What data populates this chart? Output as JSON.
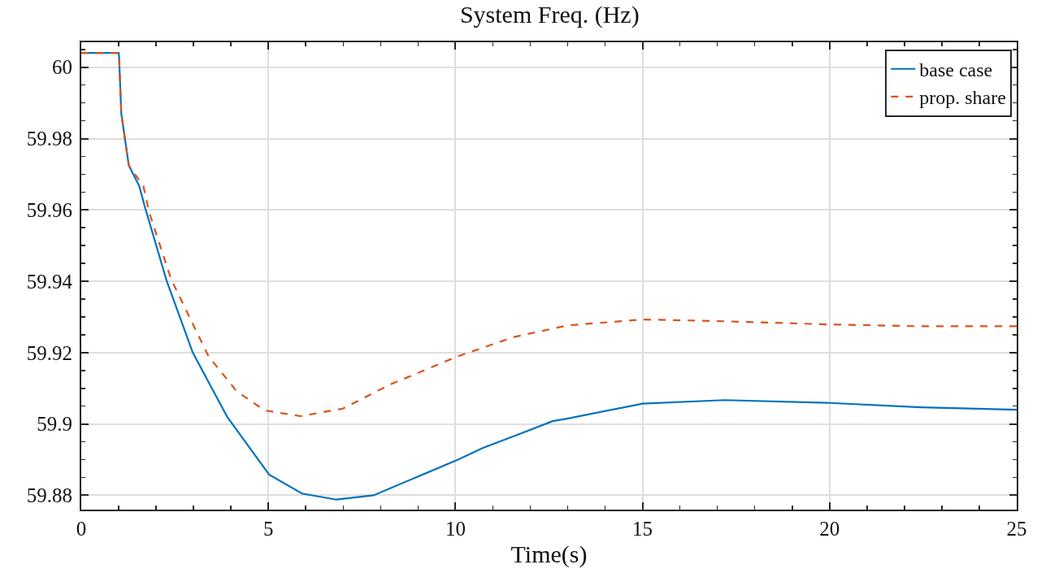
{
  "chart_data": {
    "type": "line",
    "title": "System Freq. (Hz)",
    "xlabel": "Time(s)",
    "xlim": [
      0,
      25
    ],
    "xticks": [
      0,
      5,
      10,
      15,
      20,
      25
    ],
    "ylim": [
      59.876,
      60.007
    ],
    "yticks": [
      59.88,
      59.9,
      59.92,
      59.94,
      59.96,
      59.98,
      60
    ],
    "grid": true,
    "legend": "top right",
    "marker": "none",
    "series": [
      {
        "name": "base case",
        "color": "#0072bd",
        "line_style": "solid",
        "x": [
          0,
          1,
          1.01,
          1.07,
          1.27,
          1.55,
          1.69,
          2.28,
          2.98,
          3.9,
          5.02,
          5.9,
          6.82,
          7.81,
          10.07,
          10.74,
          11.57,
          12.6,
          12.98,
          15,
          17.19,
          20,
          22.44,
          25
        ],
        "values": [
          60.004,
          60.004,
          60.003,
          59.987,
          59.9725,
          59.9667,
          59.9612,
          59.9402,
          59.92,
          59.902,
          59.8858,
          59.8805,
          59.8788,
          59.88,
          59.89,
          59.8933,
          59.8966,
          59.9008,
          59.9015,
          59.9057,
          59.9067,
          59.9059,
          59.9047,
          59.904
        ]
      },
      {
        "name": "prop. share",
        "color": "#d95319",
        "line_style": "dashed",
        "x": [
          0,
          1,
          1.01,
          1.07,
          1.27,
          1.66,
          1.81,
          2.4,
          3.4,
          4.15,
          4.9,
          5.86,
          6.99,
          8.24,
          10.07,
          11.57,
          12.98,
          15,
          17.19,
          20,
          22.44,
          25
        ],
        "values": [
          60.004,
          60.004,
          60.003,
          59.987,
          59.9725,
          59.9667,
          59.9595,
          59.9406,
          59.919,
          59.9092,
          59.9038,
          59.9022,
          59.9043,
          59.911,
          59.919,
          59.9244,
          59.9276,
          59.9293,
          59.9288,
          59.9279,
          59.9274,
          59.9274
        ]
      }
    ]
  }
}
